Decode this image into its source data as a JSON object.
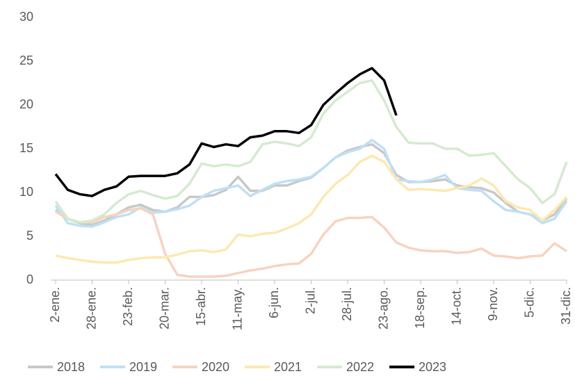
{
  "chart_data": {
    "type": "line",
    "categories": [
      "2-ene.",
      null,
      null,
      "28-ene.",
      null,
      null,
      "23-feb.",
      null,
      null,
      "20-mar.",
      null,
      null,
      "15-abr.",
      null,
      null,
      "11-may.",
      null,
      null,
      "6-jun.",
      null,
      null,
      "2-jul.",
      null,
      null,
      "28-jul.",
      null,
      null,
      "23-ago.",
      null,
      null,
      "18-sep.",
      null,
      null,
      "14-oct.",
      null,
      null,
      "9-nov.",
      null,
      null,
      "5-dic.",
      null,
      null,
      "31-dic."
    ],
    "ylim": [
      0,
      30
    ],
    "yticks": [
      0,
      5,
      10,
      15,
      20,
      25,
      30
    ],
    "grid": false,
    "legend": "bottom",
    "series": [
      {
        "name": "2018",
        "color": "#c8c8c8",
        "values": [
          8.0,
          7.0,
          6.5,
          6.3,
          6.8,
          7.5,
          8.3,
          8.6,
          8.0,
          7.8,
          8.3,
          9.5,
          9.5,
          9.7,
          10.3,
          11.8,
          10.2,
          10.2,
          10.8,
          10.8,
          11.3,
          11.7,
          12.8,
          14.0,
          14.8,
          15.2,
          15.5,
          14.5,
          12.0,
          11.2,
          11.2,
          11.3,
          11.5,
          10.8,
          10.6,
          10.5,
          10.0,
          8.8,
          7.8,
          7.5,
          6.8,
          7.5,
          9.3
        ]
      },
      {
        "name": "2019",
        "color": "#bfe0f5",
        "values": [
          8.5,
          6.5,
          6.2,
          6.1,
          6.6,
          7.2,
          7.5,
          8.3,
          7.7,
          7.8,
          8.1,
          8.5,
          9.5,
          10.2,
          10.5,
          10.8,
          9.6,
          10.3,
          11.0,
          11.3,
          11.5,
          11.8,
          12.8,
          14.0,
          14.6,
          15.0,
          16.0,
          15.0,
          11.5,
          11.3,
          11.2,
          11.5,
          12.0,
          10.5,
          10.3,
          10.2,
          9.0,
          8.0,
          7.8,
          7.5,
          6.5,
          7.0,
          9.0
        ]
      },
      {
        "name": "2020",
        "color": "#f7d3c0",
        "values": [
          7.8,
          7.0,
          6.6,
          6.6,
          7.2,
          7.5,
          8.0,
          8.2,
          7.5,
          3.0,
          0.6,
          0.4,
          0.4,
          0.4,
          0.5,
          0.8,
          1.1,
          1.3,
          1.6,
          1.8,
          1.9,
          3.0,
          5.2,
          6.7,
          7.1,
          7.1,
          7.2,
          6.0,
          4.3,
          3.7,
          3.4,
          3.3,
          3.3,
          3.1,
          3.2,
          3.6,
          2.8,
          2.7,
          2.5,
          2.7,
          2.8,
          4.2,
          3.3
        ]
      },
      {
        "name": "2021",
        "color": "#fde8b0",
        "values": [
          2.8,
          2.5,
          2.3,
          2.1,
          2.0,
          2.0,
          2.3,
          2.5,
          2.6,
          2.6,
          2.9,
          3.3,
          3.4,
          3.2,
          3.5,
          5.2,
          5.0,
          5.3,
          5.4,
          5.9,
          6.5,
          7.5,
          9.5,
          11.0,
          12.0,
          13.5,
          14.2,
          13.5,
          11.5,
          10.3,
          10.4,
          10.3,
          10.2,
          10.5,
          10.8,
          11.6,
          10.8,
          9.0,
          8.3,
          8.0,
          6.8,
          8.0,
          9.5
        ]
      },
      {
        "name": "2022",
        "color": "#d5ead0",
        "values": [
          9.0,
          7.0,
          6.6,
          6.8,
          7.5,
          8.8,
          9.8,
          10.2,
          9.7,
          9.3,
          9.6,
          11.0,
          13.3,
          13.0,
          13.2,
          13.0,
          13.5,
          15.5,
          15.8,
          15.6,
          15.3,
          16.3,
          19.0,
          20.5,
          21.5,
          22.5,
          22.8,
          20.5,
          17.5,
          15.7,
          15.6,
          15.6,
          15.0,
          15.0,
          14.2,
          14.3,
          14.5,
          13.0,
          11.5,
          10.5,
          8.8,
          9.8,
          13.5
        ]
      },
      {
        "name": "2023",
        "color": "#000000",
        "values": [
          12.1,
          10.3,
          9.8,
          9.6,
          10.3,
          10.7,
          11.8,
          11.9,
          11.9,
          11.9,
          12.2,
          13.2,
          15.6,
          15.2,
          15.5,
          15.3,
          16.3,
          16.5,
          17.0,
          17.0,
          16.8,
          17.7,
          20.0,
          21.3,
          22.5,
          23.5,
          24.2,
          22.8,
          18.8,
          null,
          null,
          null,
          null,
          null,
          null,
          null,
          null,
          null,
          null,
          null,
          null,
          null,
          null
        ]
      }
    ]
  }
}
